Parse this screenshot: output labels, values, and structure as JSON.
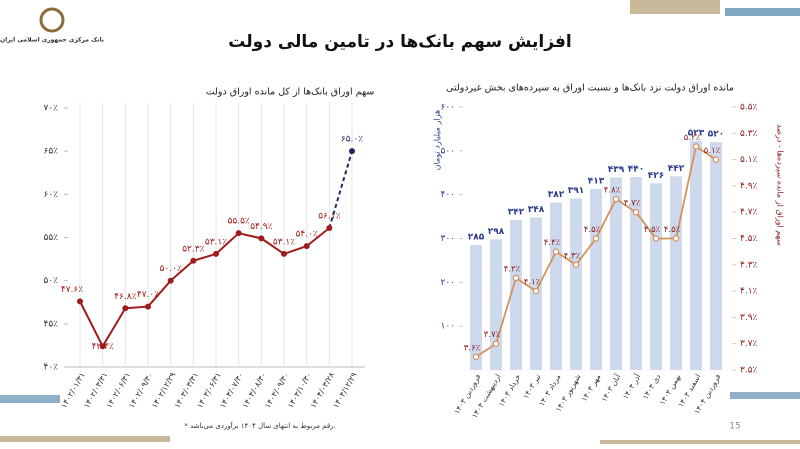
{
  "header": {
    "title": "افزایش سهم بانک‌ها در تامین مالی دولت",
    "logo_text": "بانک مرکزی جمهوری اسلامی ایران"
  },
  "footnote": "* رقم مربوط به انتهای سال ۱۴۰۴ برآوردی می‌باشد.",
  "page_number": "15",
  "chart_data": [
    {
      "type": "line",
      "title": "سهم اوراق بانک‌ها از کل مانده اوراق دولت",
      "categories": [
        "۱۴۰۲/۰۱/۳۱",
        "۱۴۰۲/۰۳/۳۱",
        "۱۴۰۲/۰۶/۳۱",
        "۱۴۰۲/۰۹/۳۰",
        "۱۴۰۲/۱۲/۲۹",
        "۱۴۰۳/۰۳/۳۱",
        "۱۴۰۳/۰۶/۳۱",
        "۱۴۰۳/۰۷/۳۰",
        "۱۴۰۳/۰۸/۳۰",
        "۱۴۰۳/۰۹/۳۰",
        "۱۴۰۳/۱۰/۳۰",
        "۱۴۰۴/۰۳/۲۸",
        "۱۴۰۴/۱۲/۲۹"
      ],
      "values": [
        47.6,
        42.4,
        46.8,
        47.0,
        50.0,
        52.3,
        53.1,
        55.5,
        54.9,
        53.1,
        54.0,
        56.1,
        65.0
      ],
      "value_labels": [
        "۴۷.۶٪",
        "۴۲.۴٪",
        "۴۶.۸٪",
        "۴۷.۰٪",
        "۵۰.۰٪",
        "۵۲.۳٪",
        "۵۳.۱٪",
        "۵۵.۵٪",
        "۵۴.۹٪",
        "۵۳.۱٪",
        "۵۴.۰٪",
        "۵۶.۱٪",
        "۶۵.۰٪"
      ],
      "color": "#a01c1c",
      "estimate_color": "#1f2a5c",
      "dashed_last": true,
      "grid": "x",
      "ylim": [
        40,
        70
      ],
      "yticks": [
        {
          "value": 40,
          "label": "۴۰٪"
        },
        {
          "value": 45,
          "label": "۴۵٪"
        },
        {
          "value": 50,
          "label": "۵۰٪"
        },
        {
          "value": 55,
          "label": "۵۵٪"
        },
        {
          "value": 60,
          "label": "۶۰٪"
        },
        {
          "value": 65,
          "label": "۶۵٪"
        },
        {
          "value": 70,
          "label": "۷۰٪"
        }
      ]
    },
    {
      "type": "combo",
      "title": "مانده اوراق دولت نزد بانک‌ها و نسبت اوراق به سپرده‌های بخش غیردولتی",
      "y_label": "هزار میلیارد تومان",
      "y2_label": "سهم اوراق از مانده سپرده‌ها - درصد",
      "categories": [
        "فروردین ۱۴۰۳",
        "اردیبهشت ۱۴۰۳",
        "خرداد ۱۴۰۳",
        "تیر ۱۴۰۳",
        "مرداد ۱۴۰۳",
        "شهریور ۱۴۰۳",
        "مهر ۱۴۰۳",
        "آبان ۱۴۰۳",
        "آذر ۱۴۰۳",
        "دی ۱۴۰۳",
        "بهمن ۱۴۰۳",
        "اسفند ۱۴۰۳",
        "فروردین ۱۴۰۴"
      ],
      "series": [
        {
          "type": "bar",
          "color": "#cfd9ee",
          "label_color": "#2b3a8a",
          "values": [
            285,
            298,
            342,
            348,
            382,
            391,
            413,
            439,
            440,
            426,
            442,
            523,
            520
          ],
          "value_labels": [
            "۲۸۵",
            "۲۹۸",
            "۳۴۲",
            "۳۴۸",
            "۳۸۲",
            "۳۹۱",
            "۴۱۳",
            "۴۳۹",
            "۴۴۰",
            "۴۲۶",
            "۴۴۲",
            "۵۲۳",
            "۵۲۰"
          ]
        },
        {
          "type": "line",
          "axis": "y2",
          "color": "#d4925a",
          "label_color": "#8b2020",
          "values": [
            3.6,
            3.7,
            4.2,
            4.1,
            4.4,
            4.3,
            4.5,
            4.8,
            4.7,
            4.5,
            4.5,
            5.2,
            5.1
          ],
          "value_labels": [
            "۳.۶٪",
            "۳.۷٪",
            "۴.۲٪",
            "۴.۱٪",
            "۴.۴٪",
            "۴.۳٪",
            "۴.۵٪",
            "۴.۸٪",
            "۴.۷٪",
            "۴.۵٪",
            "۴.۵٪",
            "۵.۲٪",
            "۵.۱٪"
          ]
        }
      ],
      "ylim": [
        0,
        600
      ],
      "yticks": [
        {
          "value": 100,
          "label": "۱۰۰"
        },
        {
          "value": 200,
          "label": "۲۰۰"
        },
        {
          "value": 300,
          "label": "۳۰۰"
        },
        {
          "value": 400,
          "label": "۴۰۰"
        },
        {
          "value": 500,
          "label": "۵۰۰"
        },
        {
          "value": 600,
          "label": "۶۰۰"
        }
      ],
      "y2lim": [
        3.5,
        5.5
      ],
      "y2ticks": [
        {
          "value": 3.5,
          "label": "۳.۵٪"
        },
        {
          "value": 3.7,
          "label": "۳.۷٪"
        },
        {
          "value": 3.9,
          "label": "۳.۹٪"
        },
        {
          "value": 4.1,
          "label": "۴.۱٪"
        },
        {
          "value": 4.3,
          "label": "۴.۳٪"
        },
        {
          "value": 4.5,
          "label": "۴.۵٪"
        },
        {
          "value": 4.7,
          "label": "۴.۷٪"
        },
        {
          "value": 4.9,
          "label": "۴.۹٪"
        },
        {
          "value": 5.1,
          "label": "۵.۱٪"
        },
        {
          "value": 5.3,
          "label": "۵.۳٪"
        },
        {
          "value": 5.5,
          "label": "۵.۵٪"
        }
      ]
    }
  ]
}
